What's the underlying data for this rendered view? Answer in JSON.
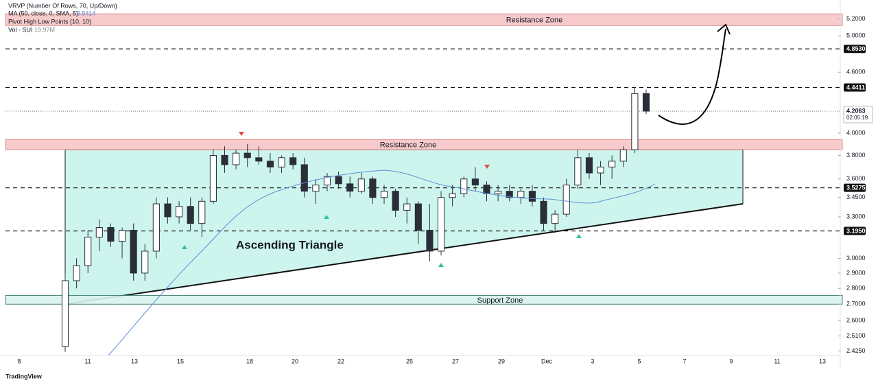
{
  "legend": [
    {
      "text": "VRVP (Number Of Rows, 70, Up/Down)"
    },
    {
      "text": "MA (50, close, 0, SMA, 5)",
      "value": "3.5414"
    },
    {
      "text": "Pivot High Low Points (10, 10)"
    },
    {
      "text": "Vol · SUI",
      "value": "19.97M"
    }
  ],
  "annotation": "Ascending Triangle",
  "branding": "TradingView",
  "chart_data": {
    "type": "candlestick",
    "log_scale": true,
    "ylim": [
      2.4,
      5.43
    ],
    "yticks": [
      {
        "value": 5.2,
        "label": "5.2000"
      },
      {
        "value": 5.0,
        "label": "5.0000"
      },
      {
        "value": 4.6,
        "label": "4.6000"
      },
      {
        "value": 4.0,
        "label": "4.0000"
      },
      {
        "value": 3.8,
        "label": "3.8000"
      },
      {
        "value": 3.6,
        "label": "3.6000"
      },
      {
        "value": 3.45,
        "label": "3.4500"
      },
      {
        "value": 3.3,
        "label": "3.3000"
      },
      {
        "value": 3.0,
        "label": "3.0000"
      },
      {
        "value": 2.9,
        "label": "2.9000"
      },
      {
        "value": 2.8,
        "label": "2.8000"
      },
      {
        "value": 2.7,
        "label": "2.7000"
      },
      {
        "value": 2.6,
        "label": "2.6000"
      },
      {
        "value": 2.51,
        "label": "2.5100"
      },
      {
        "value": 2.425,
        "label": "2.4250"
      }
    ],
    "x_labels": [
      "8",
      "11",
      "13",
      "15",
      "18",
      "20",
      "22",
      "25",
      "27",
      "29",
      "Dec",
      "3",
      "5",
      "7",
      "9",
      "11",
      "13"
    ],
    "price_lines": [
      {
        "value": 4.853,
        "label": "4.8530"
      },
      {
        "value": 4.4411,
        "label": "4.4411"
      },
      {
        "value": 3.5275,
        "label": "3.5275"
      },
      {
        "value": 3.195,
        "label": "3.1950"
      }
    ],
    "last_price": {
      "value": 4.2063,
      "label": "4.2063",
      "countdown": "02:05:19"
    },
    "zones": [
      {
        "name": "Resistance Zone",
        "low": 5.12,
        "high": 5.26,
        "color": "#f7c6c6",
        "extent": "full"
      },
      {
        "name": "Resistance Zone",
        "low": 3.85,
        "high": 3.94,
        "color": "#f7c6c6",
        "extent": "full"
      },
      {
        "name": "Support Zone",
        "low": 2.7,
        "high": 2.755,
        "color": "#d9f3ee",
        "extent": "full"
      }
    ],
    "triangle": {
      "top": 3.85,
      "bottom_start": 2.7,
      "bottom_end": 3.4,
      "color": "#cdf5ee"
    },
    "up_color": "#ffffff",
    "down_color": "#2a2e39",
    "open": [
      2.45,
      2.85,
      2.95,
      3.15,
      3.22,
      3.12,
      3.2,
      2.9,
      3.05,
      3.4,
      3.3,
      3.38,
      3.25,
      3.42,
      3.8,
      3.72,
      3.82,
      3.78,
      3.75,
      3.7,
      3.78,
      3.72,
      3.5,
      3.55,
      3.62,
      3.56,
      3.5,
      3.6,
      3.45,
      3.5,
      3.35,
      3.4,
      3.2,
      3.05,
      3.45,
      3.48,
      3.6,
      3.55,
      3.48,
      3.5,
      3.45,
      3.5,
      3.42,
      3.25,
      3.32,
      3.55,
      3.78,
      3.65,
      3.7,
      3.75,
      3.85,
      4.38
    ],
    "high": [
      2.9,
      3.0,
      3.2,
      3.28,
      3.25,
      3.22,
      3.25,
      3.1,
      3.45,
      3.45,
      3.42,
      3.45,
      3.45,
      3.85,
      3.88,
      3.85,
      3.9,
      3.88,
      3.82,
      3.8,
      3.82,
      3.78,
      3.6,
      3.65,
      3.66,
      3.62,
      3.65,
      3.62,
      3.55,
      3.52,
      3.45,
      3.42,
      3.4,
      3.5,
      3.55,
      3.62,
      3.7,
      3.58,
      3.55,
      3.55,
      3.52,
      3.55,
      3.45,
      3.35,
      3.6,
      3.85,
      3.82,
      3.75,
      3.8,
      3.88,
      4.45,
      4.42
    ],
    "low": [
      2.42,
      2.8,
      2.9,
      3.05,
      3.08,
      3.0,
      2.85,
      2.85,
      3.0,
      3.25,
      3.25,
      3.2,
      3.15,
      3.4,
      3.65,
      3.68,
      3.7,
      3.72,
      3.65,
      3.65,
      3.68,
      3.45,
      3.4,
      3.5,
      3.52,
      3.45,
      3.48,
      3.4,
      3.4,
      3.3,
      3.25,
      3.1,
      2.98,
      3.02,
      3.38,
      3.45,
      3.5,
      3.42,
      3.42,
      3.42,
      3.4,
      3.38,
      3.2,
      3.18,
      3.3,
      3.52,
      3.6,
      3.55,
      3.6,
      3.7,
      3.82,
      4.18
    ],
    "close": [
      2.85,
      2.95,
      3.15,
      3.22,
      3.12,
      3.2,
      2.9,
      3.05,
      3.4,
      3.3,
      3.38,
      3.25,
      3.42,
      3.8,
      3.72,
      3.82,
      3.78,
      3.75,
      3.7,
      3.78,
      3.72,
      3.5,
      3.55,
      3.62,
      3.56,
      3.5,
      3.6,
      3.45,
      3.5,
      3.35,
      3.4,
      3.2,
      3.05,
      3.45,
      3.48,
      3.6,
      3.55,
      3.48,
      3.5,
      3.45,
      3.5,
      3.42,
      3.25,
      3.32,
      3.55,
      3.78,
      3.65,
      3.7,
      3.75,
      3.85,
      4.38,
      4.2063
    ]
  }
}
